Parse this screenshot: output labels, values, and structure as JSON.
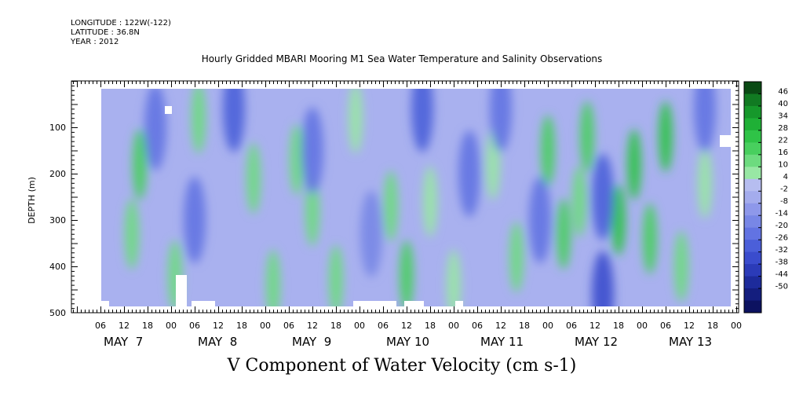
{
  "meta": {
    "longitude": "LONGITUDE : 122W(-122)",
    "latitude": "LATITUDE : 36.8N",
    "year": "YEAR : 2012"
  },
  "chart_data": {
    "type": "heatmap",
    "title": "Hourly Gridded MBARI Mooring M1 Sea Water Temperature and Salinity Observations",
    "bottom_title": "V Component of Water Velocity (cm s-1)",
    "ylabel": "DEPTH (m)",
    "y_range": [
      500,
      0
    ],
    "y_ticks": [
      100,
      200,
      300,
      400,
      500
    ],
    "x_range_hours": [
      0,
      168
    ],
    "x_tick_labels": [
      "06",
      "12",
      "18",
      "00",
      "06",
      "12",
      "18",
      "00",
      "06",
      "12",
      "18",
      "00",
      "06",
      "12",
      "18",
      "00",
      "06",
      "12",
      "18",
      "00",
      "06",
      "12",
      "18",
      "00",
      "06",
      "12",
      "18",
      "00"
    ],
    "day_labels": [
      "MAY  7",
      "MAY  8",
      "MAY  9",
      "MAY 10",
      "MAY 11",
      "MAY 12",
      "MAY 13"
    ],
    "colorbar": {
      "levels": [
        "46",
        "40",
        "34",
        "28",
        "22",
        "16",
        "10",
        "4",
        "-2",
        "-8",
        "-14",
        "-20",
        "-26",
        "-32",
        "-38",
        "-44",
        "-50"
      ],
      "positive_colors": [
        "#0a4a14",
        "#117a22",
        "#16982b",
        "#1fb036",
        "#2fc347",
        "#48cf5e",
        "#6ddb7f",
        "#98e7a4"
      ],
      "negative_colors": [
        "#b6bdf0",
        "#a4aced",
        "#8e98ea",
        "#7887e6",
        "#6273e2",
        "#4b5fd9",
        "#3a4ccd",
        "#2b3bb8",
        "#1d2b9b",
        "#141e7e",
        "#0c1260"
      ]
    },
    "velocity_patches": [
      {
        "hour": 16,
        "depth": 180,
        "value": 14
      },
      {
        "hour": 14,
        "depth": 330,
        "value": 8
      },
      {
        "hour": 25,
        "depth": 420,
        "value": 10
      },
      {
        "hour": 31,
        "depth": 80,
        "value": 8
      },
      {
        "hour": 45,
        "depth": 210,
        "value": 10
      },
      {
        "hour": 50,
        "depth": 440,
        "value": 8
      },
      {
        "hour": 56,
        "depth": 170,
        "value": 10
      },
      {
        "hour": 60,
        "depth": 280,
        "value": 8
      },
      {
        "hour": 66,
        "depth": 430,
        "value": 12
      },
      {
        "hour": 71,
        "depth": 80,
        "value": 6
      },
      {
        "hour": 80,
        "depth": 270,
        "value": 10
      },
      {
        "hour": 84,
        "depth": 420,
        "value": 14
      },
      {
        "hour": 90,
        "depth": 260,
        "value": 6
      },
      {
        "hour": 96,
        "depth": 440,
        "value": 6
      },
      {
        "hour": 106,
        "depth": 180,
        "value": 6
      },
      {
        "hour": 112,
        "depth": 380,
        "value": 8
      },
      {
        "hour": 120,
        "depth": 150,
        "value": 14
      },
      {
        "hour": 124,
        "depth": 330,
        "value": 16
      },
      {
        "hour": 130,
        "depth": 120,
        "value": 14
      },
      {
        "hour": 128,
        "depth": 260,
        "value": 10
      },
      {
        "hour": 138,
        "depth": 300,
        "value": 20
      },
      {
        "hour": 142,
        "depth": 180,
        "value": 20
      },
      {
        "hour": 146,
        "depth": 340,
        "value": 16
      },
      {
        "hour": 150,
        "depth": 120,
        "value": 22
      },
      {
        "hour": 154,
        "depth": 400,
        "value": 10
      },
      {
        "hour": 160,
        "depth": 220,
        "value": 6
      },
      {
        "hour": 88,
        "depth": 60,
        "value": -32
      },
      {
        "hour": 40,
        "depth": 60,
        "value": -30
      },
      {
        "hour": 30,
        "depth": 300,
        "value": -26
      },
      {
        "hour": 60,
        "depth": 150,
        "value": -26
      },
      {
        "hour": 100,
        "depth": 200,
        "value": -26
      },
      {
        "hour": 118,
        "depth": 300,
        "value": -28
      },
      {
        "hour": 134,
        "depth": 250,
        "value": -32
      },
      {
        "hour": 134,
        "depth": 460,
        "value": -38
      },
      {
        "hour": 20,
        "depth": 100,
        "value": -26
      },
      {
        "hour": 75,
        "depth": 330,
        "value": -22
      },
      {
        "hour": 108,
        "depth": 60,
        "value": -24
      },
      {
        "hour": 160,
        "depth": 60,
        "value": -24
      }
    ]
  }
}
